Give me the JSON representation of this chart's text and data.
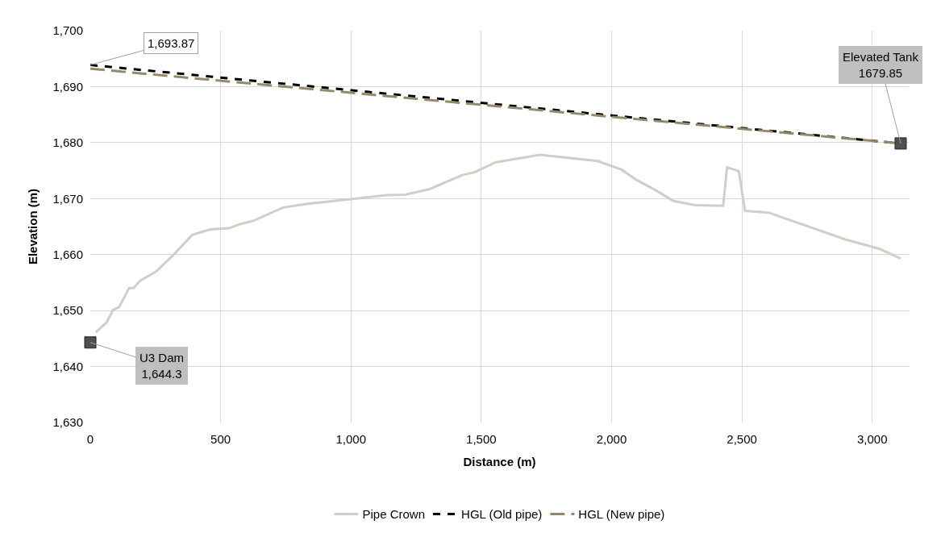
{
  "chart_data": {
    "type": "line",
    "xlabel": "Distance (m)",
    "ylabel": "Elevation (m)",
    "xlim": [
      0,
      3140
    ],
    "ylim": [
      1630,
      1700
    ],
    "xticks": [
      0,
      500,
      {
        "value": 1000,
        "label": "1,000"
      },
      {
        "value": 1500,
        "label": "1,500"
      },
      {
        "value": 2000,
        "label": "2,000"
      },
      {
        "value": 2500,
        "label": "2,500"
      },
      {
        "value": 3000,
        "label": "3,000"
      }
    ],
    "yticks": [
      {
        "value": 1630,
        "label": "1,630"
      },
      {
        "value": 1640,
        "label": "1,640"
      },
      {
        "value": 1650,
        "label": "1,650"
      },
      {
        "value": 1660,
        "label": "1,660"
      },
      {
        "value": 1670,
        "label": "1,670"
      },
      {
        "value": 1680,
        "label": "1,680"
      },
      {
        "value": 1690,
        "label": "1,690"
      },
      {
        "value": 1700,
        "label": "1,700"
      }
    ],
    "grid": true,
    "legend": "bottom",
    "series": [
      {
        "name": "Pipe Crown",
        "color": "#d0cec8",
        "line_style": "solid",
        "marker": "none",
        "x": [
          21,
          63,
          87,
          110,
          149,
          166,
          190,
          253,
          318,
          391,
          460,
          531,
          579,
          624,
          739,
          840,
          1000,
          1136,
          1208,
          1302,
          1427,
          1474,
          1556,
          1725,
          1947,
          2037,
          2097,
          2169,
          2236,
          2323,
          2428,
          2443,
          2488,
          2512,
          2602,
          2897,
          3029,
          3109
        ],
        "values": [
          1646.1,
          1647.9,
          1650.1,
          1650.6,
          1654.0,
          1654.0,
          1655.3,
          1657.0,
          1659.9,
          1663.5,
          1664.5,
          1664.7,
          1665.5,
          1666.0,
          1668.4,
          1669.1,
          1669.9,
          1670.6,
          1670.7,
          1671.7,
          1674.2,
          1674.7,
          1676.5,
          1677.8,
          1676.7,
          1675.2,
          1673.3,
          1671.5,
          1669.6,
          1668.8,
          1668.7,
          1675.6,
          1674.9,
          1667.8,
          1667.5,
          1662.7,
          1661.0,
          1659.3
        ]
      },
      {
        "name": "HGL (Old pipe)",
        "color": "#000000",
        "line_style": "dashed",
        "marker": "none",
        "x": [
          0,
          3109
        ],
        "values": [
          1693.87,
          1679.85
        ],
        "value_labels": [
          "1,693.87",
          null
        ]
      },
      {
        "name": "HGL (New pipe)",
        "color": "#948a6a",
        "line_style": "dashed",
        "marker": "none",
        "x": [
          0,
          3109
        ],
        "values": [
          1693.2,
          1679.85
        ]
      },
      {
        "type": "scatter",
        "color": "#505050",
        "marker": "square",
        "x": [
          0,
          3109
        ],
        "values": [
          1644.3,
          1679.85
        ],
        "value_labels": [
          "U3 Dam\n1,644.3",
          "Elevated Tank\n1679.85"
        ]
      }
    ]
  }
}
